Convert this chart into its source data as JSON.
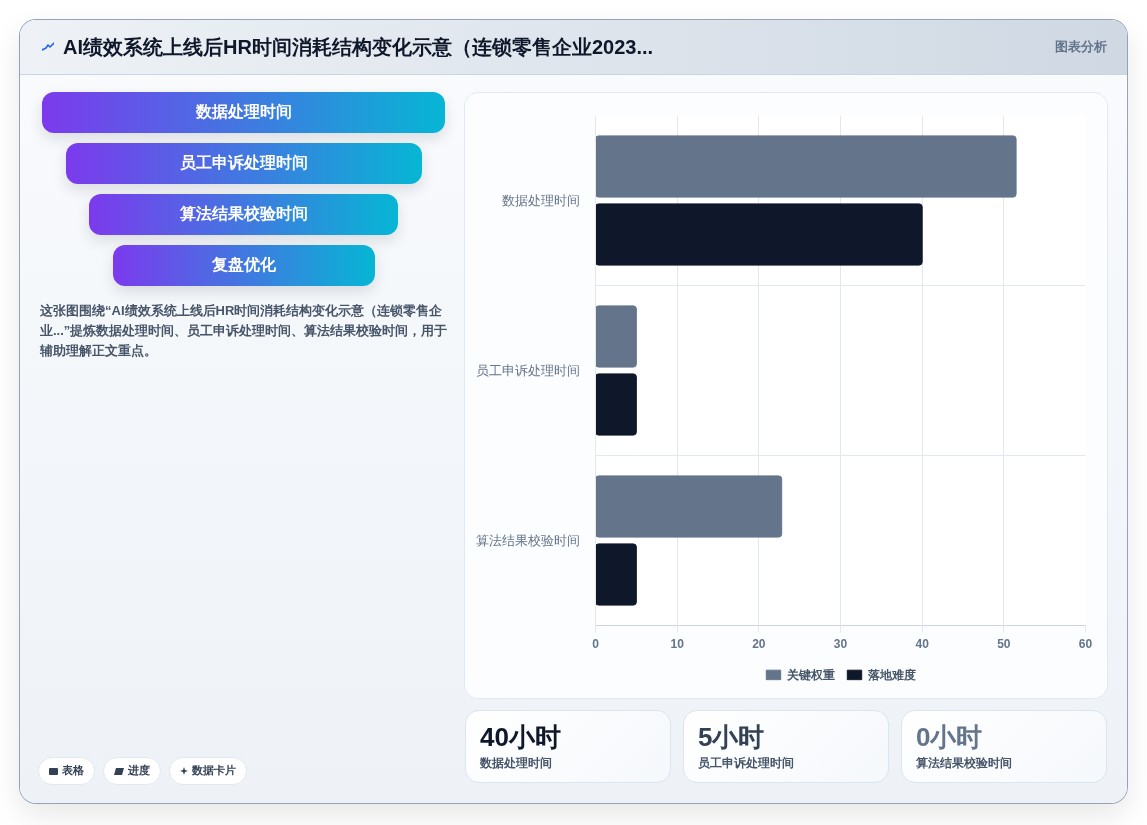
{
  "chart_data": [
    {
      "type": "other",
      "title": "AI绩效系统上线后HR时间消耗结构变化示意（连锁零售企业2023...",
      "annotations": [
        "图表分析"
      ]
    },
    {
      "type": "other",
      "categories": [
        "数据处理时间",
        "员工申诉处理时间",
        "算法结果校验时间",
        "复盘优化"
      ],
      "annotations": [
        "这张图围绕“AI绩效系统上线后HR时间消耗结构变化示意（连锁零售企业...”提炼数据处理时间、员工申诉处理时间、算法结果校验时间，用于辅助理解正文重点。",
        "表格",
        "进度",
        "数据卡片"
      ]
    },
    {
      "type": "bar",
      "orientation": "horizontal",
      "categories": [
        "数据处理时间",
        "员工申诉处理时间",
        "算法结果校验时间"
      ],
      "series": [
        {
          "name": "关键权重",
          "color": "#64748b",
          "values": [
            51.5,
            5,
            22.8
          ]
        },
        {
          "name": "落地难度",
          "color": "#0f172a",
          "values": [
            40,
            5,
            5
          ]
        }
      ],
      "xlim": [
        0,
        60
      ],
      "xticks": [
        0,
        10,
        20,
        30,
        40,
        50,
        60
      ],
      "grid": true,
      "legend": "bottom"
    },
    {
      "type": "other",
      "colors": [
        "#0f172a",
        "#334155",
        "#64748b"
      ],
      "annotations": [
        "40小时",
        "数据处理时间",
        "5小时",
        "员工申诉处理时间",
        "0小时",
        "算法结果校验时间"
      ]
    }
  ]
}
